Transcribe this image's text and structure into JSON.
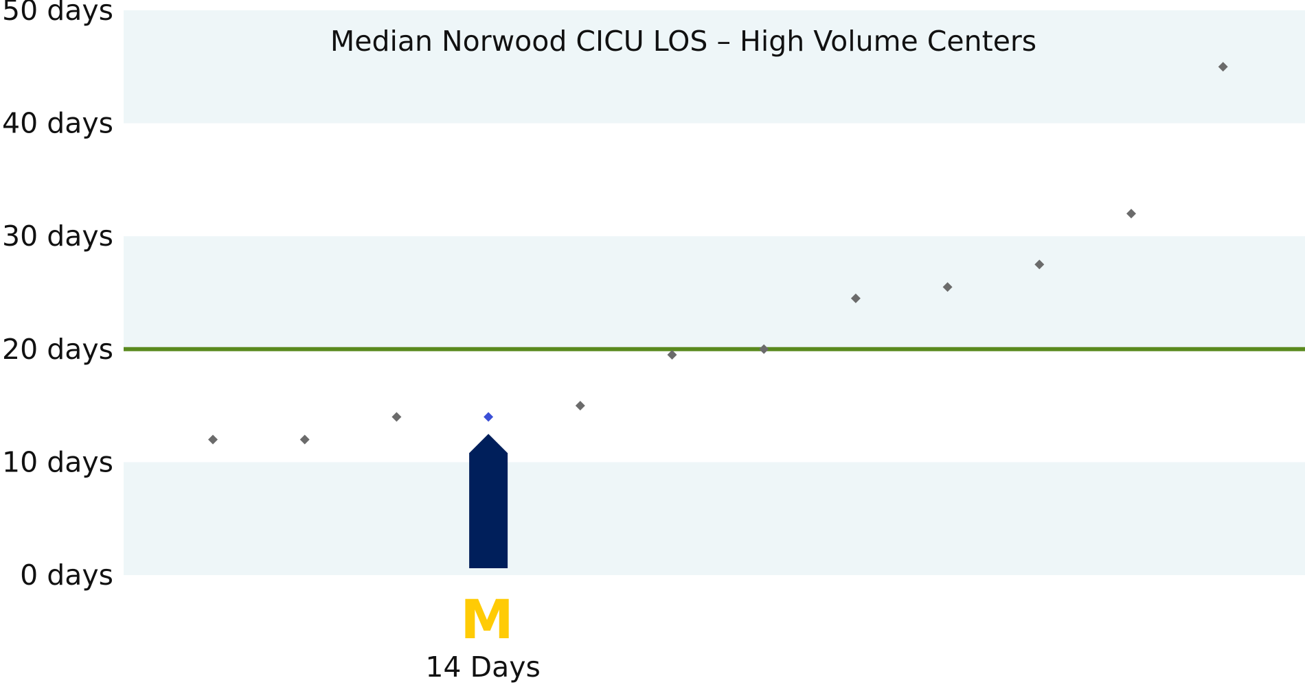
{
  "chart_data": {
    "type": "scatter",
    "title": "Median Norwood CICU LOS – High Volume Centers",
    "xlabel": "",
    "ylabel": "",
    "ylim": [
      0,
      50
    ],
    "y_ticks": [
      {
        "value": 0,
        "label": "0 days"
      },
      {
        "value": 10,
        "label": "10 days"
      },
      {
        "value": 20,
        "label": "20 days"
      },
      {
        "value": 30,
        "label": "30 days"
      },
      {
        "value": 40,
        "label": "40 days"
      },
      {
        "value": 50,
        "label": "50 days"
      }
    ],
    "bands": [
      {
        "from": 0,
        "to": 10,
        "color": "#eef6f8"
      },
      {
        "from": 20,
        "to": 30,
        "color": "#eef6f8"
      },
      {
        "from": 40,
        "to": 50,
        "color": "#eef6f8"
      }
    ],
    "reference_line": {
      "value": 20,
      "color": "#5a8a1e"
    },
    "points": [
      {
        "center": 1,
        "value": 12
      },
      {
        "center": 2,
        "value": 12
      },
      {
        "center": 3,
        "value": 14
      },
      {
        "center": 4,
        "value": 14,
        "highlight": true
      },
      {
        "center": 5,
        "value": 15
      },
      {
        "center": 6,
        "value": 19.5
      },
      {
        "center": 7,
        "value": 20
      },
      {
        "center": 8,
        "value": 24.5
      },
      {
        "center": 9,
        "value": 25.5
      },
      {
        "center": 10,
        "value": 27.5
      },
      {
        "center": 11,
        "value": 32
      },
      {
        "center": 12,
        "value": 45
      }
    ],
    "point_color": "#6b6b6b",
    "highlight_color": "#3b4fd6",
    "highlight_marker": {
      "center": 4,
      "value": 12.5,
      "color": "#001f5b",
      "logo_text": "M",
      "logo_color": "#ffcb05",
      "label": "14 Days"
    }
  }
}
